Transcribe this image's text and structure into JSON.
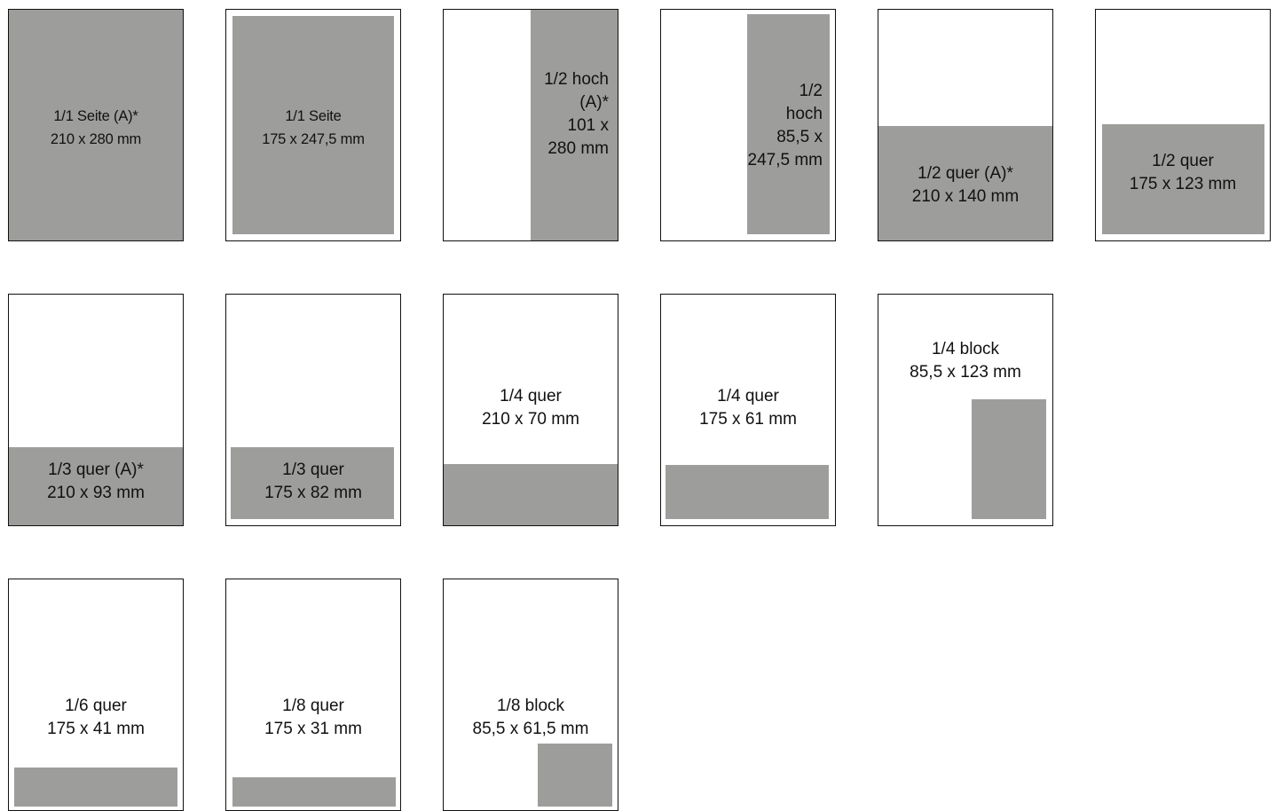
{
  "fill_color": "#9d9d9c",
  "formats": [
    {
      "id": "f1",
      "line1": "1/1 Seite (A)*",
      "line2": "210 x 280 mm"
    },
    {
      "id": "f2",
      "line1": "1/1 Seite",
      "line2": "175 x 247,5 mm"
    },
    {
      "id": "f3",
      "lines": [
        "1/2 hoch",
        "(A)*",
        "101 x",
        "280 mm"
      ]
    },
    {
      "id": "f4",
      "lines": [
        "1/2",
        "hoch",
        "85,5 x",
        "247,5 mm"
      ]
    },
    {
      "id": "f5",
      "line1": "1/2 quer (A)*",
      "line2": "210 x 140 mm"
    },
    {
      "id": "f6",
      "line1": "1/2 quer",
      "line2": "175 x 123 mm"
    },
    {
      "id": "f7",
      "line1": "1/3 quer (A)*",
      "line2": "210 x 93 mm"
    },
    {
      "id": "f8",
      "line1": "1/3 quer",
      "line2": "175 x 82 mm"
    },
    {
      "id": "f9",
      "line1": "1/4 quer",
      "line2": "210 x 70 mm"
    },
    {
      "id": "f10",
      "line1": "1/4 quer",
      "line2": "175 x 61 mm"
    },
    {
      "id": "f11",
      "line1": "1/4 block",
      "line2": "85,5 x 123 mm"
    },
    {
      "id": "f12",
      "line1": "1/6 quer",
      "line2": "175 x 41 mm"
    },
    {
      "id": "f13",
      "line1": "1/8 quer",
      "line2": "175 x 31 mm"
    },
    {
      "id": "f14",
      "line1": "1/8 block",
      "line2": "85,5 x 61,5 mm"
    }
  ]
}
